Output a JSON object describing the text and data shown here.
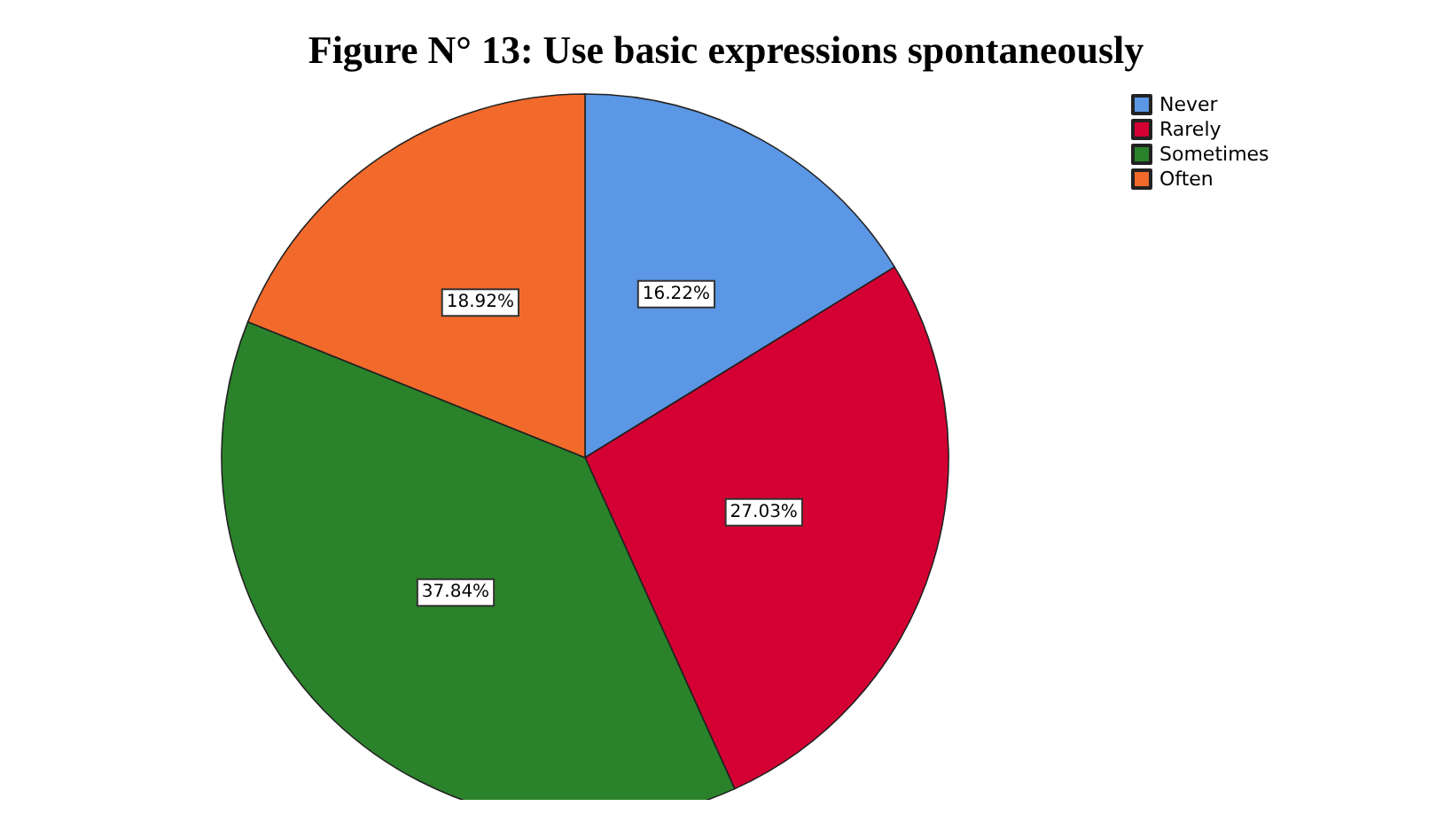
{
  "chart_data": {
    "type": "pie",
    "title": "Figure N° 13: Use basic expressions spontaneously",
    "categories": [
      "Never",
      "Rarely",
      "Sometimes",
      "Often"
    ],
    "values": [
      16.22,
      27.03,
      37.84,
      18.92
    ],
    "colors": [
      "#5b97e5",
      "#d40033",
      "#2a832a",
      "#f26a2b"
    ],
    "value_labels": [
      "16.22%",
      "27.03%",
      "37.84%",
      "18.92%"
    ],
    "legend": "top right"
  }
}
